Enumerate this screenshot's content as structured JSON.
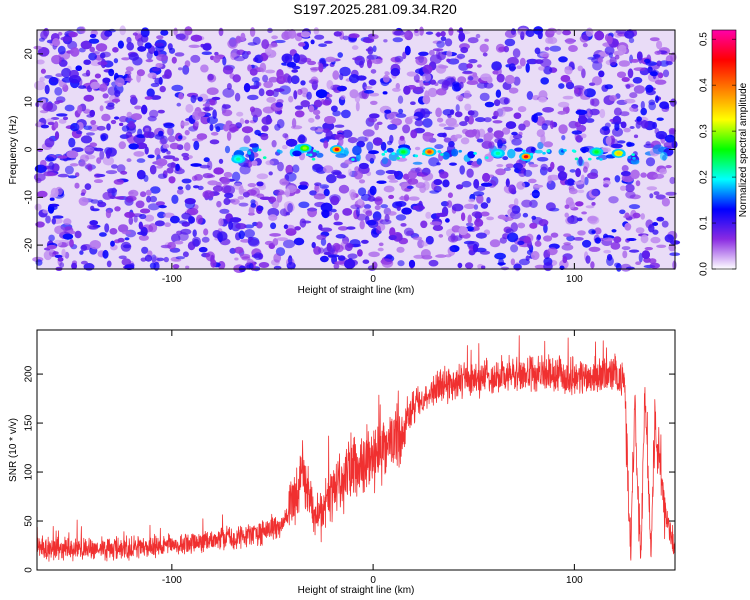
{
  "title": "S197.2025.281.09.34.R20",
  "chart_data": [
    {
      "type": "heatmap",
      "xlabel": "Height of straight line (km)",
      "ylabel": "Frequency (Hz)",
      "xlim": [
        -167,
        150
      ],
      "ylim": [
        -25,
        25
      ],
      "x_ticks": [
        -100,
        0,
        100
      ],
      "y_ticks": [
        -20,
        -10,
        0,
        10,
        20
      ],
      "colorbar": {
        "label": "Normalized spectral amplitude",
        "range": [
          0,
          0.52
        ],
        "ticks": [
          "0.0",
          "0.1",
          "0.2",
          "0.3",
          "0.4",
          "0.5"
        ],
        "colors": [
          "#ffffff",
          "#8a2be2",
          "#0000ff",
          "#00ffff",
          "#00ff00",
          "#ffff00",
          "#ff8000",
          "#ff0000",
          "#ff00aa"
        ]
      },
      "ridge": {
        "frequency_hz": -1,
        "x_range": [
          -80,
          145
        ]
      },
      "peaks": [
        {
          "x": -18,
          "y": 0,
          "amplitude": 0.45
        },
        {
          "x": 28,
          "y": -0.5,
          "amplitude": 0.42
        },
        {
          "x": 76,
          "y": -1.5,
          "amplitude": 0.46
        },
        {
          "x": 122,
          "y": -0.8,
          "amplitude": 0.35
        },
        {
          "x": -34,
          "y": 0.3,
          "amplitude": 0.3
        },
        {
          "x": 15,
          "y": -0.5,
          "amplitude": 0.25
        },
        {
          "x": -67,
          "y": -2,
          "amplitude": 0.22
        },
        {
          "x": 62,
          "y": -0.8,
          "amplitude": 0.22
        },
        {
          "x": 111,
          "y": -0.5,
          "amplitude": 0.25
        }
      ]
    },
    {
      "type": "line",
      "xlabel": "Height of straight line (km)",
      "ylabel": "SNR (10 * v/v)",
      "xlim": [
        -167,
        150
      ],
      "ylim": [
        0,
        245
      ],
      "x_ticks": [
        -100,
        0,
        100
      ],
      "y_ticks": [
        0,
        50,
        100,
        150,
        200
      ],
      "line_color": "#f03030",
      "trend": {
        "x": [
          -167,
          -120,
          -80,
          -55,
          -45,
          -40,
          -35,
          -28,
          -18,
          -10,
          0,
          5,
          15,
          20,
          30,
          40,
          60,
          80,
          100,
          110,
          120,
          125,
          128,
          130,
          133,
          135,
          138,
          140,
          145,
          150
        ],
        "y": [
          22,
          22,
          30,
          38,
          45,
          70,
          100,
          55,
          85,
          105,
          110,
          120,
          145,
          165,
          185,
          192,
          198,
          200,
          197,
          198,
          200,
          190,
          15,
          180,
          10,
          180,
          15,
          150,
          60,
          20
        ]
      }
    }
  ]
}
